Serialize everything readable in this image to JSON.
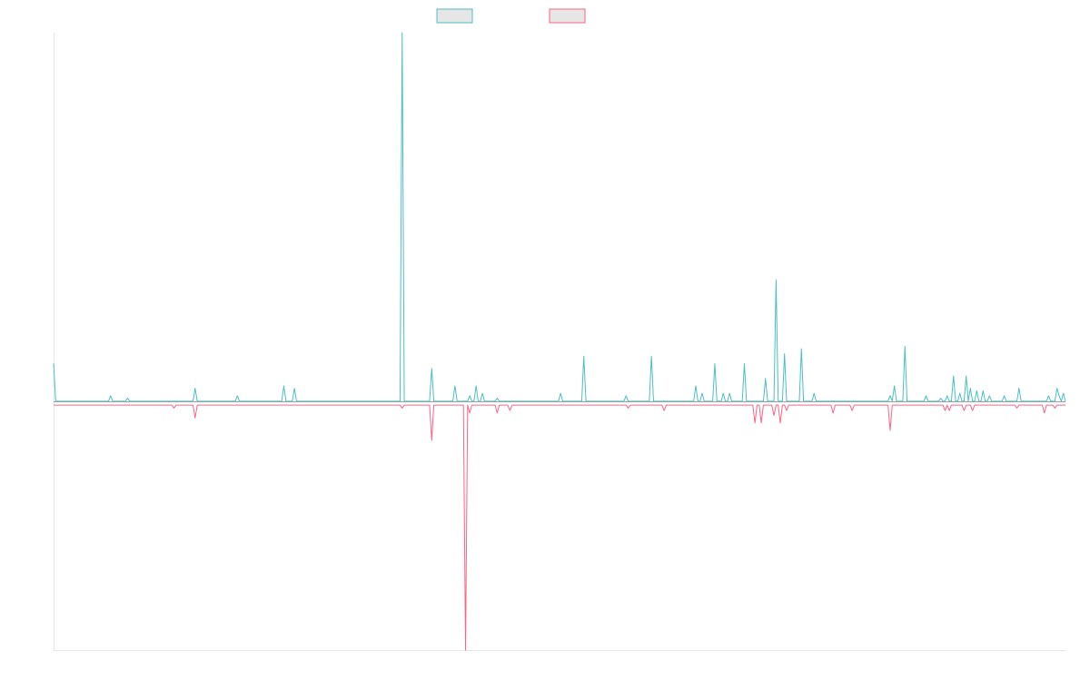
{
  "chart_data": {
    "type": "line",
    "title": "",
    "xlabel": "",
    "ylabel": "",
    "grid": false,
    "legend": "top-center",
    "x_count": 480,
    "ylim": [
      -100,
      150
    ],
    "series": [
      {
        "name": "",
        "color": "#4bc0c0",
        "fill": "#e6e6e6",
        "base": 0.8,
        "spikes": [
          [
            0,
            16
          ],
          [
            27,
            3
          ],
          [
            35,
            2
          ],
          [
            67,
            6
          ],
          [
            87,
            3
          ],
          [
            109,
            7
          ],
          [
            114,
            6
          ],
          [
            165,
            150
          ],
          [
            179,
            14
          ],
          [
            190,
            7
          ],
          [
            197,
            3
          ],
          [
            200,
            7
          ],
          [
            203,
            4
          ],
          [
            210,
            2
          ],
          [
            240,
            4
          ],
          [
            251,
            19
          ],
          [
            271,
            3
          ],
          [
            283,
            19
          ],
          [
            304,
            7
          ],
          [
            307,
            4
          ],
          [
            313,
            16
          ],
          [
            317,
            4
          ],
          [
            320,
            4
          ],
          [
            327,
            16
          ],
          [
            337,
            10
          ],
          [
            342,
            50
          ],
          [
            346,
            20
          ],
          [
            354,
            22
          ],
          [
            360,
            4
          ],
          [
            396,
            3
          ],
          [
            398,
            7
          ],
          [
            403,
            23
          ],
          [
            413,
            3
          ],
          [
            420,
            2
          ],
          [
            423,
            3
          ],
          [
            426,
            11
          ],
          [
            429,
            4
          ],
          [
            432,
            11
          ],
          [
            434,
            6
          ],
          [
            437,
            5
          ],
          [
            440,
            5
          ],
          [
            443,
            3
          ],
          [
            450,
            3
          ],
          [
            457,
            6
          ],
          [
            471,
            3
          ],
          [
            475,
            6
          ],
          [
            476,
            3
          ],
          [
            478,
            4
          ]
        ]
      },
      {
        "name": "",
        "color": "#ff6384",
        "fill": "#e6e6e6",
        "base": -0.8,
        "spikes": [
          [
            57,
            -2
          ],
          [
            67,
            -6
          ],
          [
            165,
            -2
          ],
          [
            179,
            -15
          ],
          [
            195,
            -100
          ],
          [
            197,
            -4
          ],
          [
            210,
            -4
          ],
          [
            216,
            -3
          ],
          [
            272,
            -2
          ],
          [
            289,
            -3
          ],
          [
            332,
            -8
          ],
          [
            335,
            -8
          ],
          [
            341,
            -5
          ],
          [
            344,
            -8
          ],
          [
            347,
            -3
          ],
          [
            369,
            -4
          ],
          [
            378,
            -3
          ],
          [
            396,
            -11
          ],
          [
            422,
            -3
          ],
          [
            424,
            -3
          ],
          [
            431,
            -3
          ],
          [
            435,
            -3
          ],
          [
            456,
            -2
          ],
          [
            469,
            -4
          ],
          [
            474,
            -2
          ]
        ]
      }
    ]
  }
}
